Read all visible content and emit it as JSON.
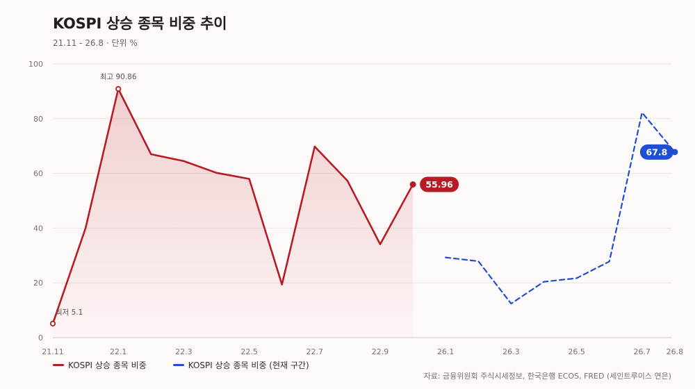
{
  "header": {
    "title": "KOSPI 상승 종목 비중 추이",
    "subtitle": "21.11 - 26.8 · 단위 %"
  },
  "legend": [
    {
      "label": "KOSPI 상승 종목 비중",
      "color": "#b71c24"
    },
    {
      "label": "KOSPI 상승 종목 비중 (현재 구간)",
      "color": "#1f4fd1"
    }
  ],
  "source": "자료: 금융위원회 주식시세정보, 한국은행 ECOS, FRED (세인트루이스 연은)",
  "chart_data": {
    "type": "line",
    "ylim": [
      0,
      100
    ],
    "yticks": [
      0,
      20,
      40,
      60,
      80,
      100
    ],
    "xtick_labels": [
      "21.11",
      "22.1",
      "22.3",
      "22.5",
      "22.7",
      "22.9",
      "26.1",
      "26.3",
      "26.5",
      "26.7",
      "26.8"
    ],
    "grid": true,
    "series": [
      {
        "name": "KOSPI 상승 종목 비중",
        "color": "#b71c24",
        "style": "solid",
        "area": true,
        "x": [
          "21.11",
          "21.12",
          "22.1",
          "22.2",
          "22.3",
          "22.4",
          "22.5",
          "22.6",
          "22.7",
          "22.8",
          "22.9",
          "22.10"
        ],
        "values": [
          5.1,
          40,
          90.86,
          67,
          64.5,
          60.2,
          58,
          19.4,
          69.8,
          57.3,
          34.1,
          55.96
        ]
      },
      {
        "name": "KOSPI 상승 종목 비중 (현재 구간)",
        "color": "#1f4fd1",
        "style": "dashed",
        "area": false,
        "x": [
          "26.1",
          "26.2",
          "26.3",
          "26.4",
          "26.5",
          "26.6",
          "26.7",
          "26.8"
        ],
        "values": [
          29.3,
          27.9,
          12.4,
          20.4,
          21.7,
          27.8,
          82.2,
          67.8
        ]
      }
    ],
    "annotations": [
      {
        "series": 0,
        "index": 2,
        "text": "최고 90.86"
      },
      {
        "series": 0,
        "index": 0,
        "text": "최저 5.1"
      }
    ],
    "end_labels": [
      {
        "series": 0,
        "text": "55.96"
      },
      {
        "series": 1,
        "text": "67.8"
      }
    ]
  }
}
